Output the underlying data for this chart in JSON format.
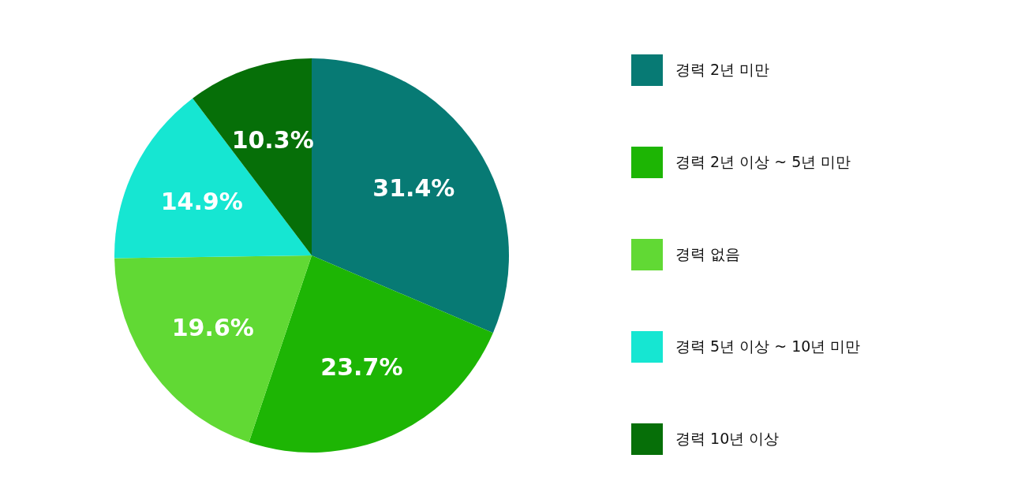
{
  "chart_data": {
    "type": "pie",
    "categories": [
      "경력 2년 미만",
      "경력 2년 이상 ~ 5년 미만",
      "경력 없음",
      "경력 5년 이상 ~ 10년 미만",
      "경력 10년 이상"
    ],
    "values": [
      31.4,
      23.7,
      19.6,
      14.9,
      10.3
    ],
    "value_labels": [
      "31.4%",
      "23.7%",
      "19.6%",
      "14.9%",
      "10.3%"
    ],
    "colors": [
      "#077a74",
      "#1db504",
      "#61d934",
      "#16e6d2",
      "#066f08"
    ],
    "legend": "right"
  }
}
